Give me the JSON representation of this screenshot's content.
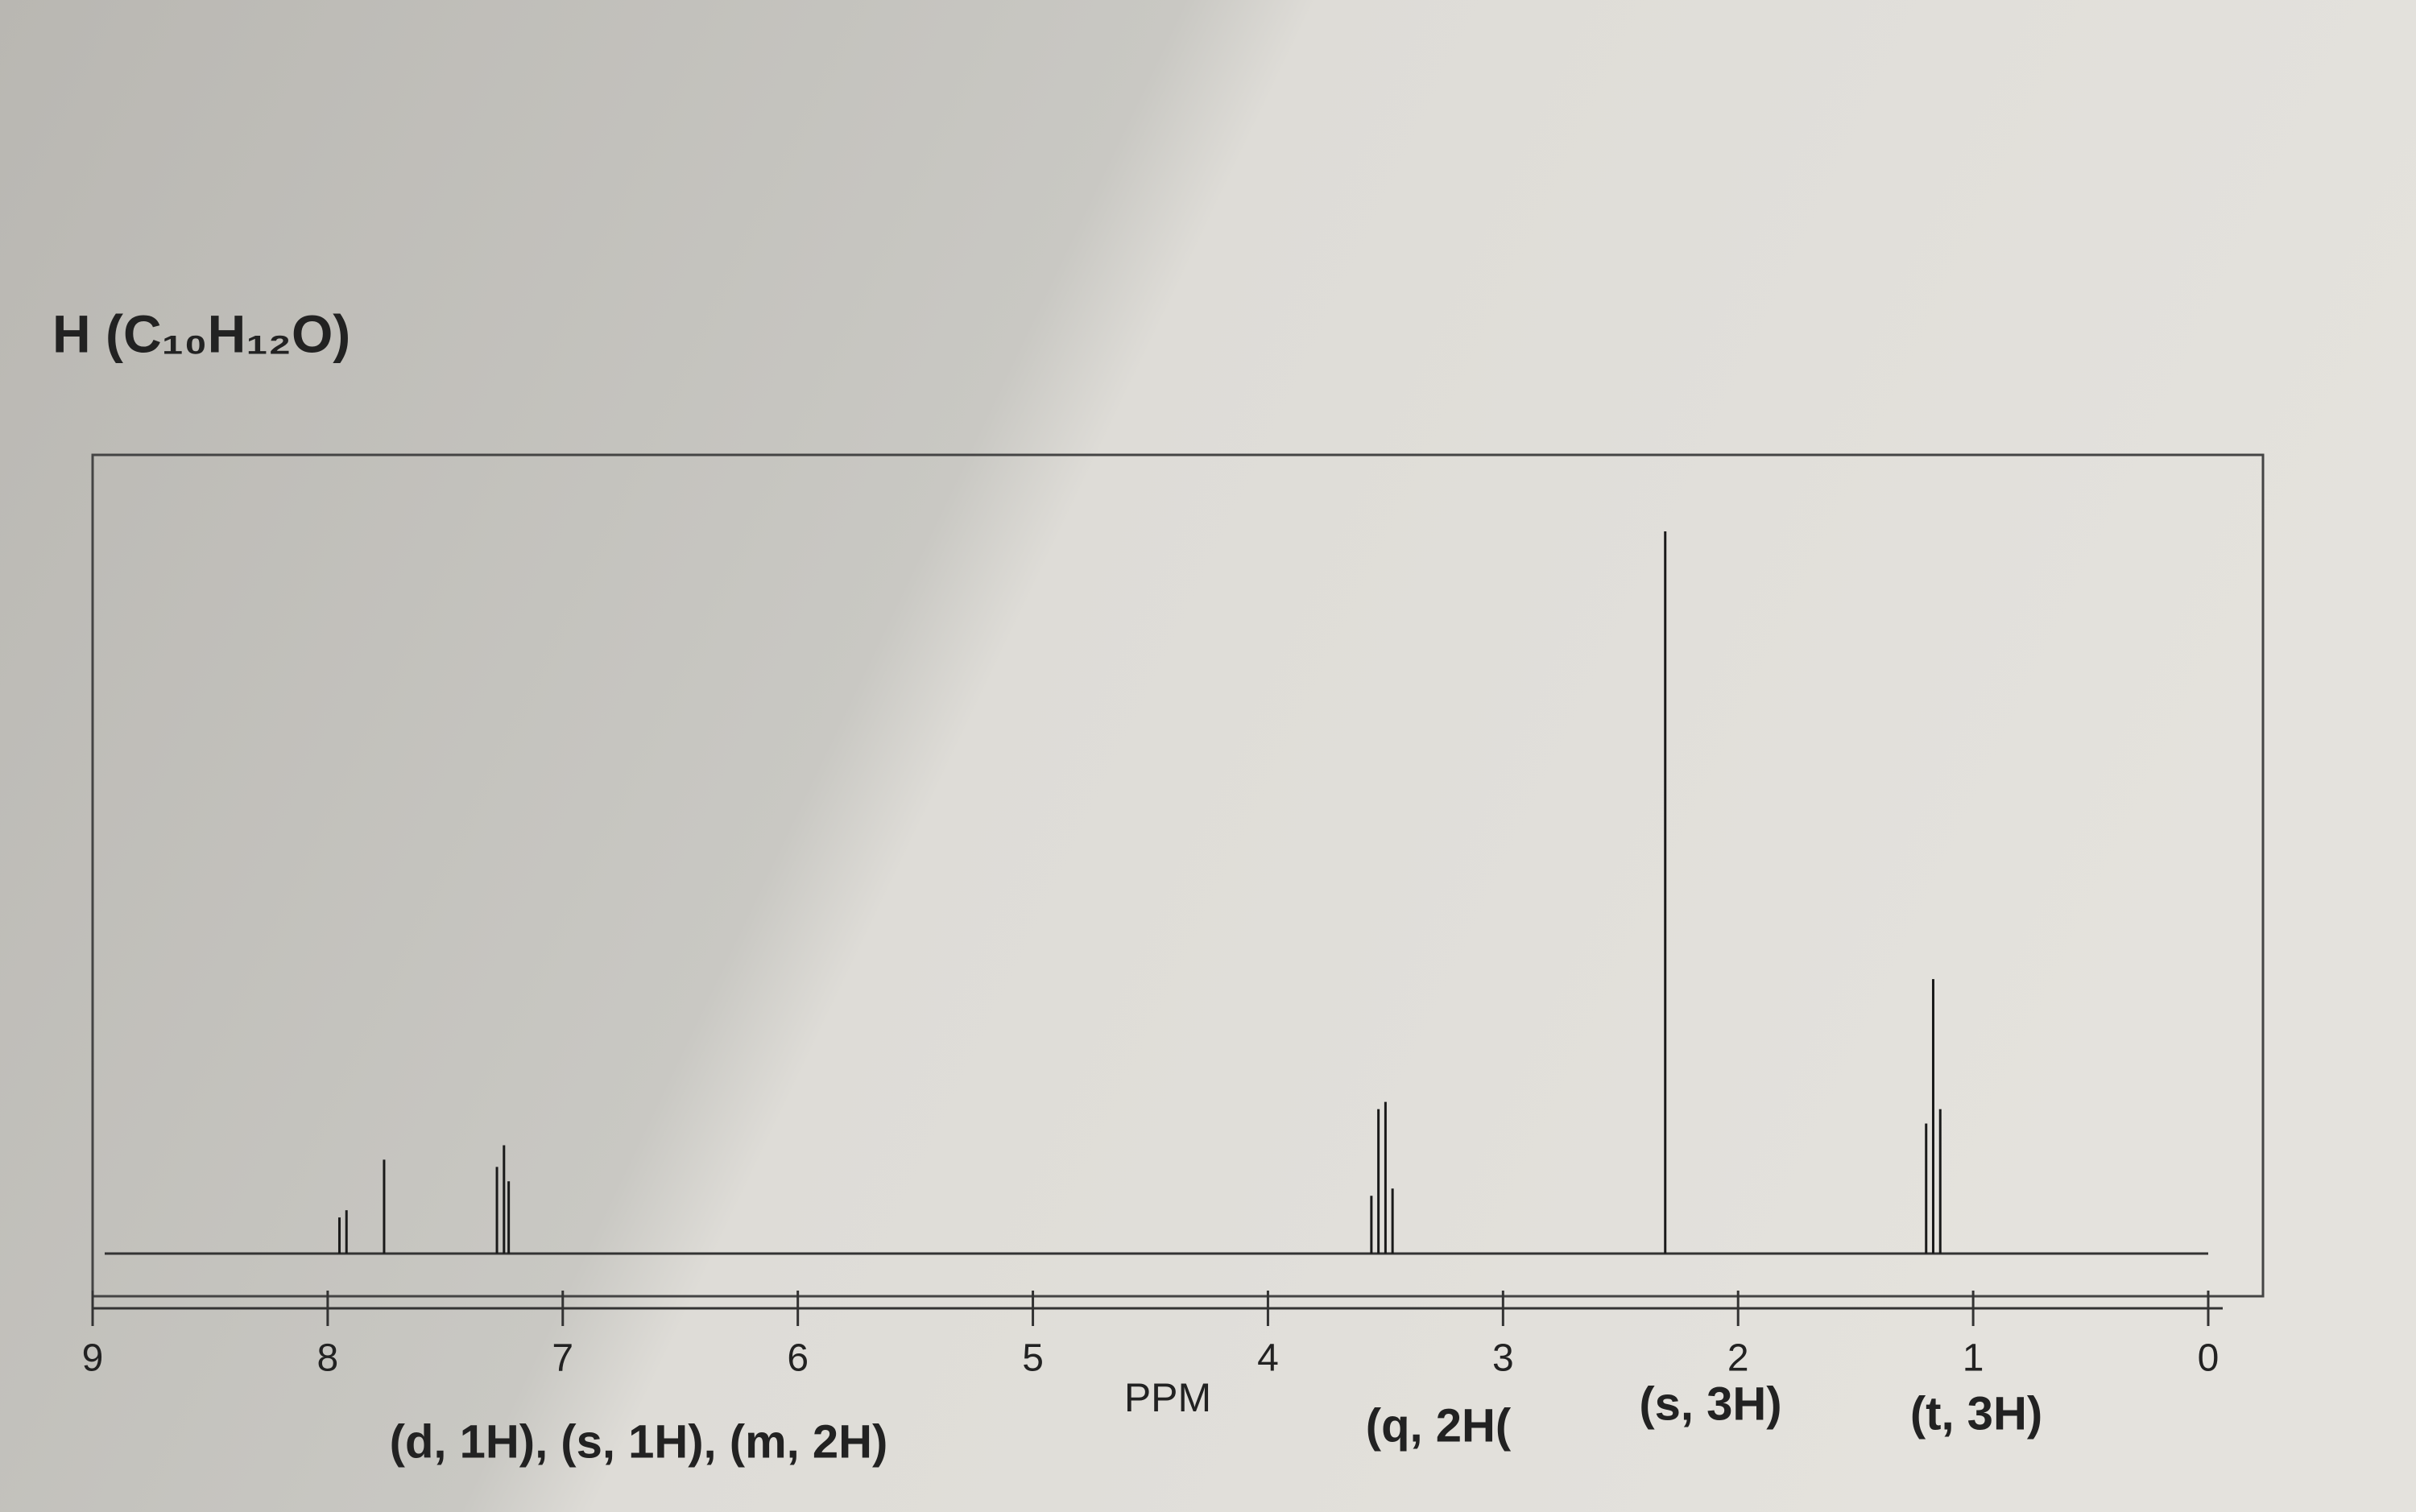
{
  "chart_data": {
    "type": "stick",
    "title": "H (C₁₀H₁₂O)",
    "xlabel": "PPM",
    "annotations": [
      "(d, 1H), (s, 1H), (m, 2H)",
      "(q, 2H(",
      "(s, 3H)",
      "(t, 3H)"
    ],
    "xlim": [
      9,
      0
    ],
    "xticks": [
      9,
      8,
      7,
      6,
      5,
      4,
      3,
      2,
      1,
      0
    ],
    "ylim": [
      0,
      100
    ],
    "series": [
      {
        "color": "#1a1a1a",
        "x": [
          7.95,
          7.92,
          7.76,
          7.28,
          7.25,
          7.23,
          3.56,
          3.53,
          3.5,
          3.47,
          2.31,
          1.2,
          1.17,
          1.14
        ],
        "values": [
          5,
          6,
          13,
          12,
          15,
          10,
          8,
          20,
          21,
          9,
          100,
          18,
          38,
          20
        ]
      }
    ]
  }
}
